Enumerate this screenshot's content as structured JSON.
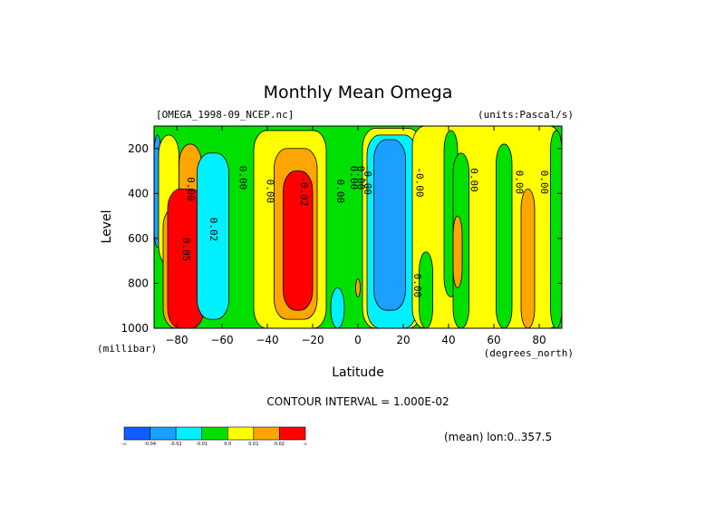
{
  "chart_data": {
    "type": "heatmap",
    "title": "Monthly Mean Omega",
    "file_label": "[OMEGA_1998-09_NCEP.nc]",
    "units_label": "(units:Pascal/s)",
    "xlabel": "Latitude",
    "ylabel": "Level",
    "x_unit": "(degrees_north)",
    "y_unit": "(millibar)",
    "xlim": [
      -90,
      90
    ],
    "ylim": [
      1000,
      100
    ],
    "x_ticks": [
      -80,
      -60,
      -40,
      -20,
      0,
      20,
      40,
      60,
      80
    ],
    "y_ticks": [
      200,
      400,
      600,
      800,
      1000
    ],
    "contour_interval_text": "CONTOUR INTERVAL = 1.000E-02",
    "mean_text": "(mean) lon:0..357.5",
    "colorbar": {
      "colors": [
        "#0f5dff",
        "#1aa0ff",
        "#00f0ff",
        "#00e000",
        "#ffff00",
        "#ffa500",
        "#ff0000"
      ],
      "labels": [
        "-∞",
        "-0.04",
        "-0.02",
        "-0.01",
        "0.0",
        "0.01",
        "0.02",
        "∞"
      ]
    },
    "background_color": "#00e000",
    "regions": [
      {
        "lon0": -90,
        "lon1": -87,
        "p0": 140,
        "p1": 640,
        "color": "#1aa0ff"
      },
      {
        "lon0": -88,
        "lon1": -79,
        "p0": 140,
        "p1": 720,
        "color": "#ffff00"
      },
      {
        "lon0": -79,
        "lon1": -69,
        "p0": 180,
        "p1": 600,
        "color": "#ffa500"
      },
      {
        "lon0": -86,
        "lon1": -68,
        "p0": 460,
        "p1": 1000,
        "color": "#ffa500"
      },
      {
        "lon0": -84,
        "lon1": -68,
        "p0": 380,
        "p1": 1000,
        "color": "#ff0000"
      },
      {
        "lon0": -71,
        "lon1": -57,
        "p0": 220,
        "p1": 960,
        "color": "#00f0ff"
      },
      {
        "lon0": -46,
        "lon1": -14,
        "p0": 120,
        "p1": 1000,
        "color": "#ffff00"
      },
      {
        "lon0": -37,
        "lon1": -18,
        "p0": 200,
        "p1": 960,
        "color": "#ffa500"
      },
      {
        "lon0": -33,
        "lon1": -20,
        "p0": 300,
        "p1": 920,
        "color": "#ff0000"
      },
      {
        "lon0": -12,
        "lon1": -6,
        "p0": 820,
        "p1": 1000,
        "color": "#00f0ff"
      },
      {
        "lon0": -1,
        "lon1": 1,
        "p0": 780,
        "p1": 860,
        "color": "#ffa500"
      },
      {
        "lon0": 2,
        "lon1": 28,
        "p0": 110,
        "p1": 1000,
        "color": "#ffff00"
      },
      {
        "lon0": 4,
        "lon1": 26,
        "p0": 140,
        "p1": 1000,
        "color": "#00f0ff"
      },
      {
        "lon0": 7,
        "lon1": 21,
        "p0": 160,
        "p1": 920,
        "color": "#1aa0ff"
      },
      {
        "lon0": 24,
        "lon1": 90,
        "p0": 100,
        "p1": 1000,
        "color": "#ffff00"
      },
      {
        "lon0": 27,
        "lon1": 33,
        "p0": 660,
        "p1": 1000,
        "color": "#00e000"
      },
      {
        "lon0": 38,
        "lon1": 44,
        "p0": 120,
        "p1": 860,
        "color": "#00e000"
      },
      {
        "lon0": 42,
        "lon1": 49,
        "p0": 220,
        "p1": 1000,
        "color": "#00e000"
      },
      {
        "lon0": 42,
        "lon1": 46,
        "p0": 500,
        "p1": 820,
        "color": "#ffa500"
      },
      {
        "lon0": 61,
        "lon1": 68,
        "p0": 180,
        "p1": 1000,
        "color": "#00e000"
      },
      {
        "lon0": 72,
        "lon1": 78,
        "p0": 380,
        "p1": 1000,
        "color": "#ffa500"
      },
      {
        "lon0": 85,
        "lon1": 90,
        "p0": 120,
        "p1": 1000,
        "color": "#00e000"
      }
    ],
    "contour_labels": [
      {
        "text": "0.00",
        "lon": -74,
        "p": 380
      },
      {
        "text": "0.02",
        "lon": -64,
        "p": 560
      },
      {
        "text": "0.05",
        "lon": -76,
        "p": 650
      },
      {
        "text": "0.00",
        "lon": -51,
        "p": 330
      },
      {
        "text": "0.00",
        "lon": -39,
        "p": 390
      },
      {
        "text": "-0.02",
        "lon": -24,
        "p": 390
      },
      {
        "text": "0.00",
        "lon": -8,
        "p": 390
      },
      {
        "text": "0.00",
        "lon": -2,
        "p": 330
      },
      {
        "text": "0.00",
        "lon": 1,
        "p": 330
      },
      {
        "text": "-0.00",
        "lon": 4,
        "p": 340
      },
      {
        "text": "-0.00",
        "lon": 27,
        "p": 350
      },
      {
        "text": "0.00",
        "lon": 26,
        "p": 810
      },
      {
        "text": "0.00",
        "lon": 51,
        "p": 340
      },
      {
        "text": "0.00",
        "lon": 71,
        "p": 350
      },
      {
        "text": "0.00",
        "lon": 82,
        "p": 350
      }
    ]
  }
}
